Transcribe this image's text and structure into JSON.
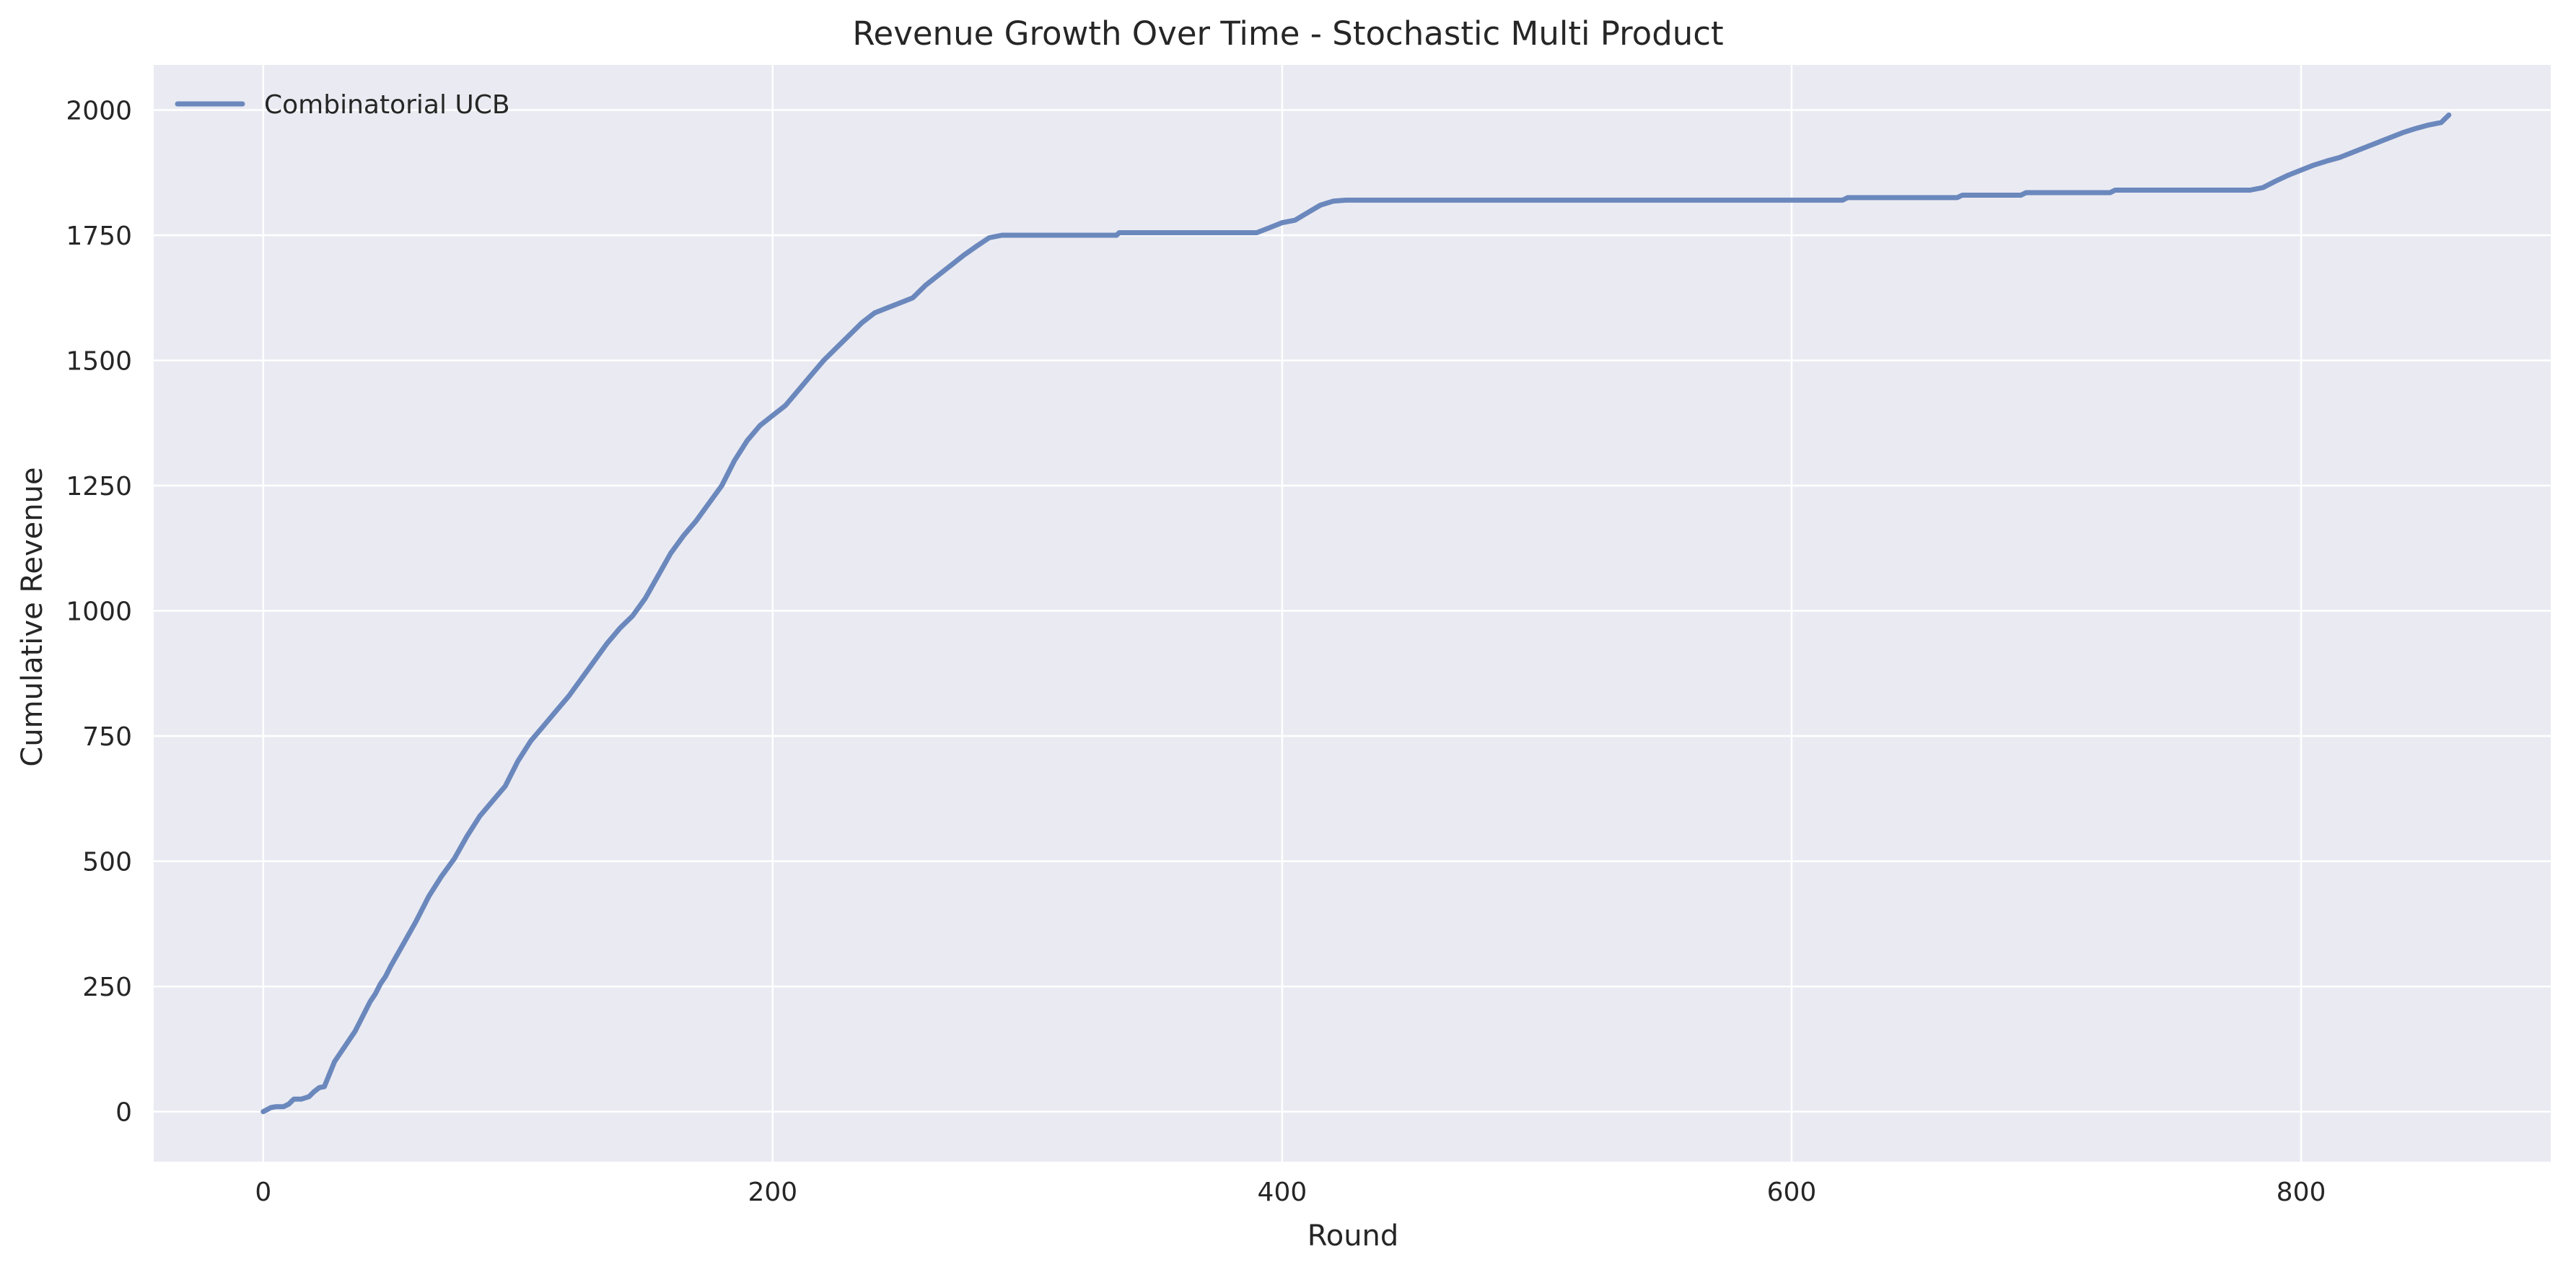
{
  "chart_data": {
    "type": "line",
    "title": "Revenue Growth Over Time - Stochastic Multi Product",
    "xlabel": "Round",
    "ylabel": "Cumulative Revenue",
    "xlim": [
      -43,
      898
    ],
    "ylim": [
      -100,
      2090
    ],
    "x_ticks": [
      0,
      200,
      400,
      600,
      800
    ],
    "y_ticks": [
      0,
      250,
      500,
      750,
      1000,
      1250,
      1500,
      1750,
      2000
    ],
    "x_tick_labels": [
      "0",
      "200",
      "400",
      "600",
      "800"
    ],
    "y_tick_labels": [
      "0",
      "250",
      "500",
      "750",
      "1000",
      "1250",
      "1500",
      "1750",
      "2000"
    ],
    "grid": true,
    "legend_position": "top-left",
    "colors": {
      "background": "#eaeaf2",
      "grid": "#ffffff",
      "series": "#6b88bd"
    },
    "series": [
      {
        "name": "Combinatorial UCB",
        "x": [
          0,
          3,
          5,
          8,
          10,
          12,
          15,
          18,
          20,
          22,
          24,
          26,
          28,
          30,
          32,
          34,
          36,
          38,
          40,
          42,
          44,
          46,
          48,
          50,
          55,
          60,
          65,
          70,
          75,
          80,
          85,
          90,
          95,
          100,
          105,
          110,
          115,
          120,
          125,
          130,
          135,
          140,
          145,
          150,
          155,
          160,
          165,
          170,
          175,
          180,
          185,
          190,
          195,
          200,
          205,
          210,
          215,
          220,
          225,
          230,
          235,
          240,
          245,
          250,
          255,
          260,
          265,
          270,
          275,
          280,
          285,
          290,
          295,
          300,
          335,
          336,
          390,
          395,
          400,
          405,
          410,
          415,
          420,
          425,
          620,
          622,
          665,
          667,
          690,
          692,
          725,
          727,
          780,
          785,
          790,
          795,
          800,
          805,
          810,
          815,
          820,
          825,
          830,
          835,
          840,
          845,
          850,
          855,
          858
        ],
        "values": [
          0,
          8,
          10,
          10,
          15,
          25,
          25,
          30,
          40,
          48,
          50,
          75,
          100,
          115,
          130,
          145,
          160,
          180,
          200,
          220,
          235,
          255,
          270,
          290,
          335,
          380,
          430,
          470,
          505,
          550,
          590,
          620,
          650,
          700,
          740,
          770,
          800,
          830,
          865,
          900,
          935,
          965,
          990,
          1025,
          1070,
          1115,
          1150,
          1180,
          1215,
          1250,
          1300,
          1340,
          1370,
          1390,
          1410,
          1440,
          1470,
          1500,
          1525,
          1550,
          1575,
          1595,
          1605,
          1615,
          1625,
          1650,
          1670,
          1690,
          1710,
          1728,
          1745,
          1750,
          1750,
          1750,
          1750,
          1755,
          1755,
          1765,
          1775,
          1780,
          1795,
          1810,
          1818,
          1820,
          1820,
          1825,
          1825,
          1830,
          1830,
          1835,
          1835,
          1840,
          1840,
          1845,
          1858,
          1870,
          1880,
          1890,
          1898,
          1905,
          1915,
          1925,
          1935,
          1945,
          1955,
          1963,
          1970,
          1975,
          1990
        ]
      }
    ]
  }
}
